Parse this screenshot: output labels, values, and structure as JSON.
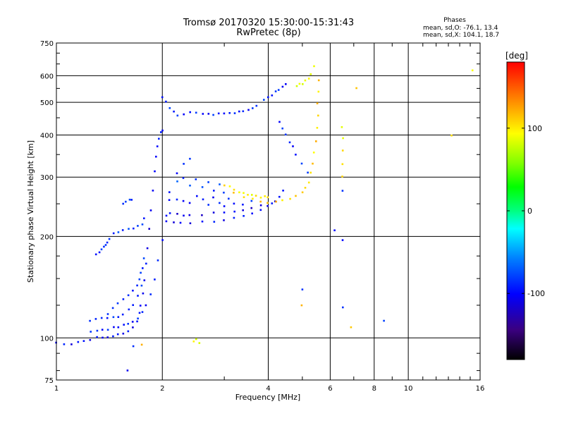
{
  "header": {
    "title_line1": "Tromsø 20170320 15:30:00-15:31:43",
    "title_line2": "RwPretec (8p)"
  },
  "stats": {
    "heading": "Phases",
    "line1": "mean, sd,O: -76.1, 13.4",
    "line2": "mean, sd,X: 104.1, 18.7"
  },
  "colorbar": {
    "unit": "[deg]",
    "ticks": [
      "100",
      "0",
      "-100"
    ],
    "tick_values": [
      100,
      0,
      -100
    ],
    "range": [
      -180,
      180
    ],
    "colormap": [
      "#000000",
      "#3a0080",
      "#0000ff",
      "#0080ff",
      "#00ffff",
      "#00ff80",
      "#00ff00",
      "#80ff00",
      "#ffff00",
      "#ff8000",
      "#ff0000"
    ]
  },
  "chart_data": {
    "type": "scatter",
    "xlabel": "Frequency [MHz]",
    "ylabel": "Stationary phase Virtual Height [km]",
    "xscale": "log",
    "yscale": "log",
    "xlim": [
      1,
      16
    ],
    "ylim": [
      75,
      750
    ],
    "xticks": [
      1,
      2,
      4,
      6,
      8,
      10,
      16
    ],
    "xtick_labels": [
      "1",
      "2",
      "4",
      "6",
      "8",
      "10",
      "16"
    ],
    "yticks": [
      75,
      100,
      200,
      300,
      400,
      500,
      600,
      750
    ],
    "ytick_labels": [
      "75",
      "100",
      "200",
      "300",
      "400",
      "500",
      "600",
      "750"
    ],
    "grid": true,
    "series": [
      {
        "phase": -110,
        "x": [
          1.0,
          1.05,
          1.1,
          1.15,
          1.2,
          1.25,
          1.3,
          1.35,
          1.4,
          1.45,
          1.5,
          1.55,
          1.6,
          1.65,
          1.7,
          1.72,
          1.74,
          1.76,
          1.78,
          1.8,
          1.82,
          1.84,
          1.86,
          1.88,
          1.9,
          1.92,
          1.94,
          1.96,
          1.98,
          2.0
        ],
        "y": [
          97,
          96,
          96,
          97,
          98,
          99,
          100,
          100,
          101,
          101,
          102,
          103,
          105,
          108,
          112,
          118,
          125,
          135,
          148,
          165,
          185,
          210,
          240,
          275,
          310,
          345,
          370,
          390,
          405,
          412
        ]
      },
      {
        "phase": -100,
        "x": [
          1.25,
          1.3,
          1.35,
          1.4,
          1.45,
          1.5,
          1.55,
          1.6,
          1.65,
          1.7,
          1.75,
          1.8,
          1.85,
          1.9,
          1.95,
          2.0,
          2.05,
          2.1,
          2.2,
          2.3,
          2.4
        ],
        "y": [
          104,
          105,
          106,
          106,
          107,
          108,
          109,
          110,
          112,
          115,
          119,
          125,
          135,
          150,
          170,
          195,
          230,
          270,
          310,
          330,
          340
        ]
      },
      {
        "phase": -95,
        "x": [
          1.25,
          1.3,
          1.35,
          1.4,
          1.45,
          1.5,
          1.55,
          1.6,
          1.65,
          1.7,
          1.75
        ],
        "y": [
          113,
          114,
          114,
          115,
          115,
          116,
          118,
          121,
          126,
          133,
          143
        ]
      },
      {
        "phase": -100,
        "x": [
          1.4,
          1.45,
          1.5,
          1.55,
          1.6,
          1.65,
          1.7,
          1.72,
          1.74,
          1.76,
          1.78
        ],
        "y": [
          118,
          122,
          126,
          130,
          134,
          138,
          144,
          149,
          155,
          162,
          172
        ]
      },
      {
        "phase": -100,
        "x": [
          1.3,
          1.32,
          1.34,
          1.36,
          1.38,
          1.4,
          1.42
        ],
        "y": [
          178,
          180,
          183,
          186,
          189,
          193,
          197
        ]
      },
      {
        "phase": -95,
        "x": [
          1.45,
          1.5,
          1.55,
          1.6,
          1.65,
          1.7,
          1.75,
          1.78
        ],
        "y": [
          205,
          207,
          208,
          210,
          212,
          214,
          218,
          225
        ]
      },
      {
        "phase": -90,
        "x": [
          1.55,
          1.58,
          1.61,
          1.64
        ],
        "y": [
          250,
          253,
          256,
          258
        ]
      },
      {
        "phase": -110,
        "x": [
          2.05,
          2.15,
          2.25,
          2.4,
          2.6,
          2.8,
          3.0,
          3.2,
          3.4,
          3.6,
          3.8,
          4.0,
          4.1,
          4.2,
          4.3,
          4.4
        ],
        "y": [
          222,
          220,
          219,
          219,
          220,
          222,
          224,
          227,
          230,
          234,
          239,
          245,
          250,
          256,
          264,
          275
        ]
      },
      {
        "phase": -115,
        "x": [
          2.1,
          2.2,
          2.3,
          2.4,
          2.6,
          2.8,
          3.0,
          3.2,
          3.4,
          3.6,
          3.8
        ],
        "y": [
          235,
          233,
          232,
          232,
          233,
          234,
          236,
          238,
          240,
          244,
          248
        ]
      },
      {
        "phase": -100,
        "x": [
          2.1,
          2.2,
          2.3,
          2.4,
          2.5,
          2.6,
          2.7,
          2.8,
          2.9,
          3.0,
          3.1,
          3.2,
          3.4,
          3.6
        ],
        "y": [
          255,
          258,
          254,
          250,
          262,
          256,
          248,
          260,
          252,
          245,
          258,
          250,
          247,
          255
        ]
      },
      {
        "phase": -90,
        "x": [
          2.2,
          2.3,
          2.4,
          2.5,
          2.6,
          2.7,
          2.8,
          2.9,
          3.0
        ],
        "y": [
          290,
          300,
          285,
          295,
          280,
          290,
          275,
          285,
          270
        ]
      },
      {
        "phase": -100,
        "x": [
          2.0,
          2.05,
          2.1,
          2.15,
          2.2,
          2.3,
          2.4,
          2.5,
          2.6,
          2.7,
          2.8,
          2.9,
          3.0,
          3.1,
          3.2,
          3.3,
          3.4,
          3.5,
          3.6,
          3.7
        ],
        "y": [
          520,
          505,
          480,
          470,
          460,
          462,
          465,
          463,
          460,
          461,
          462,
          463,
          465,
          466,
          466,
          467,
          470,
          475,
          480,
          485
        ]
      },
      {
        "phase": -100,
        "x": [
          3.9,
          4.0,
          4.1,
          4.2,
          4.3,
          4.4,
          4.5
        ],
        "y": [
          505,
          515,
          525,
          535,
          545,
          555,
          565
        ]
      },
      {
        "phase": 110,
        "x": [
          3.0,
          3.1,
          3.2,
          3.3,
          3.4,
          3.5,
          3.6,
          3.7,
          3.8,
          3.9,
          4.0
        ],
        "y": [
          285,
          280,
          275,
          272,
          268,
          266,
          265,
          263,
          262,
          262,
          262
        ]
      },
      {
        "phase": 120,
        "x": [
          3.2,
          3.4,
          3.6,
          3.8,
          4.0,
          4.2,
          4.4,
          4.6,
          4.8,
          5.0,
          5.1,
          5.2,
          5.3,
          5.35,
          5.4,
          5.45,
          5.5,
          5.52,
          5.54,
          5.55,
          5.56
        ],
        "y": [
          270,
          262,
          258,
          255,
          253,
          253,
          255,
          258,
          263,
          270,
          278,
          290,
          310,
          330,
          355,
          385,
          420,
          460,
          500,
          540,
          580
        ]
      },
      {
        "phase": 100,
        "x": [
          4.8,
          4.9,
          5.0,
          5.1,
          5.2,
          5.3,
          5.4
        ],
        "y": [
          560,
          565,
          570,
          580,
          590,
          610,
          640
        ]
      },
      {
        "phase": -100,
        "x": [
          4.3,
          4.4,
          4.5,
          4.6,
          4.7,
          4.8,
          5.0,
          5.2
        ],
        "y": [
          440,
          420,
          400,
          380,
          370,
          350,
          330,
          310
        ]
      },
      {
        "phase": 100,
        "x": [
          2.45,
          2.5,
          2.55
        ],
        "y": [
          98,
          99,
          97
        ]
      },
      {
        "phase": 110,
        "x": [
          6.5,
          6.5,
          6.5,
          6.5,
          6.5,
          13.3,
          15.2
        ],
        "y": [
          390,
          360,
          330,
          300,
          420,
          400,
          620
        ]
      },
      {
        "phase": -100,
        "x": [
          6.5,
          6.5,
          6.2,
          6.5,
          8.5,
          5.0,
          1.65,
          1.6
        ],
        "y": [
          275,
          195,
          210,
          123,
          113,
          140,
          95,
          80
        ]
      },
      {
        "phase": 130,
        "x": [
          5.0,
          6.9,
          7.1,
          1.75
        ],
        "y": [
          125,
          108,
          548,
          95
        ]
      }
    ]
  }
}
